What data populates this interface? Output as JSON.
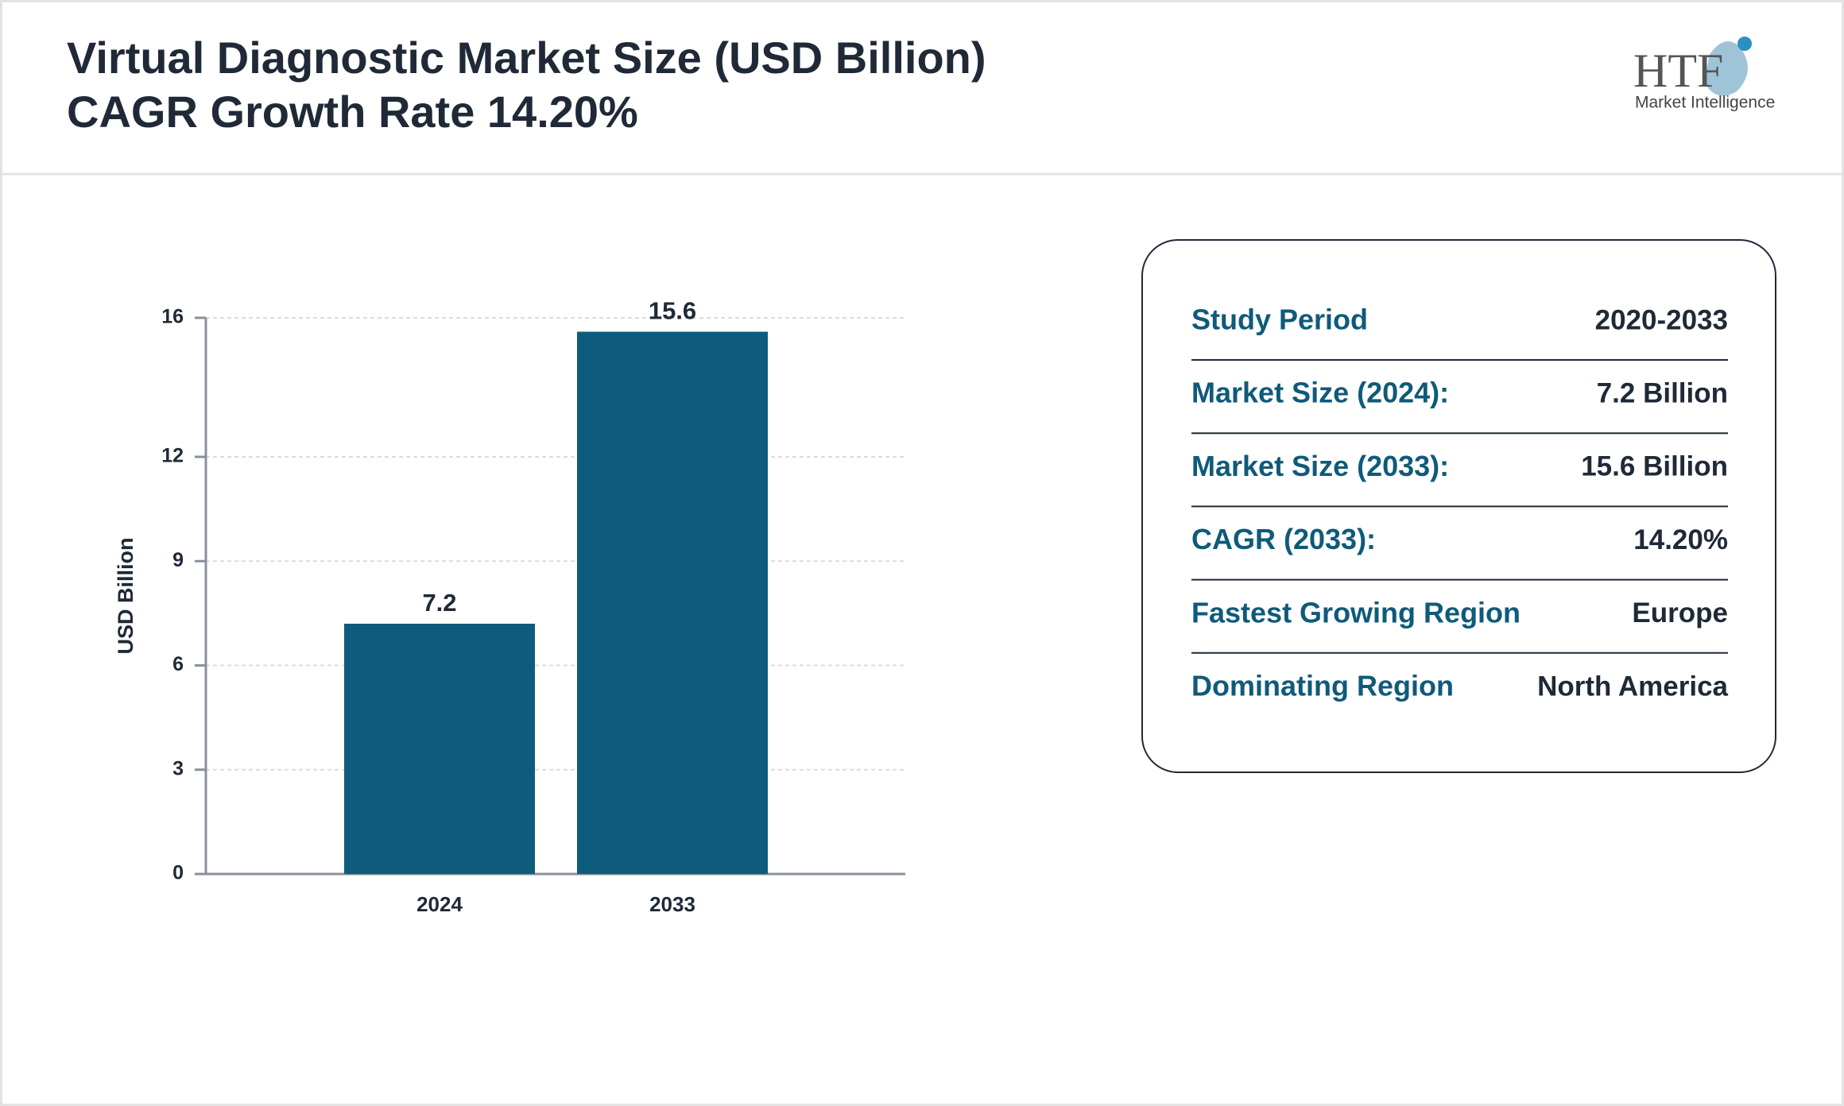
{
  "header": {
    "title": "Virtual Diagnostic Market Size (USD Billion)",
    "subtitle": "CAGR Growth Rate 14.20%"
  },
  "logo": {
    "text": "HTF",
    "subtext": "Market Intelligence"
  },
  "chart_data": {
    "type": "bar",
    "y_label": "USD Billion",
    "categories": [
      "2024",
      "2033"
    ],
    "values": [
      7.2,
      15.6
    ],
    "color": "#0d5c7d",
    "ylim": [
      0,
      16
    ],
    "yticks": [
      0,
      3,
      6,
      9,
      12,
      16
    ],
    "grid": true
  },
  "summary": {
    "rows": [
      [
        "Study Period",
        "2020-2033"
      ],
      [
        "Market Size (2024):",
        "7.2 Billion"
      ],
      [
        "Market Size (2033):",
        "15.6 Billion"
      ],
      [
        "CAGR (2033):",
        "14.20%"
      ],
      [
        "Fastest Growing Region",
        "Europe"
      ],
      [
        "Dominating Region",
        "North America"
      ]
    ]
  }
}
